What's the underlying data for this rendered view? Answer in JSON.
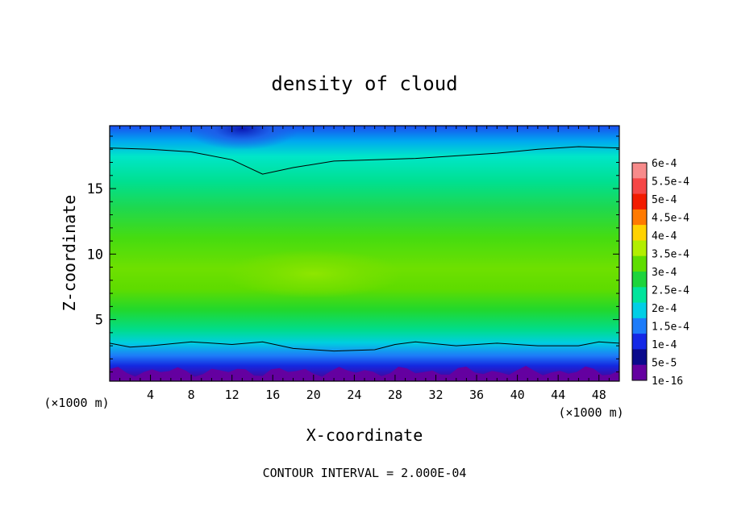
{
  "chart_data": {
    "type": "heatmap",
    "title": "density of cloud",
    "xlabel": "X-coordinate",
    "ylabel": "Z-coordinate",
    "x_unit_left": "(×1000 m)",
    "x_unit_right": "(×1000 m)",
    "footer": "CONTOUR INTERVAL = 2.000E-04",
    "xlim": [
      0,
      50
    ],
    "ylim": [
      0.3,
      19.8
    ],
    "x_ticks": [
      4,
      8,
      12,
      16,
      20,
      24,
      28,
      32,
      36,
      40,
      44,
      48
    ],
    "y_ticks": [
      5,
      10,
      15
    ],
    "colorbar": {
      "labels": [
        "6e-4",
        "5.5e-4",
        "5e-4",
        "4.5e-4",
        "4e-4",
        "3.5e-4",
        "3e-4",
        "2.5e-4",
        "2e-4",
        "1.5e-4",
        "1e-4",
        "5e-5",
        "1e-16"
      ],
      "colors": [
        "#f78b8b",
        "#f54747",
        "#f21c00",
        "#ff7a00",
        "#ffd200",
        "#b2ee00",
        "#5fdd00",
        "#1ed43c",
        "#00e49c",
        "#00cfe6",
        "#1c7cfa",
        "#1428e6",
        "#0a0a8c",
        "#6400a0"
      ]
    },
    "contour_lines": [
      {
        "level": "2e-4",
        "x": [
          0,
          4,
          8,
          12,
          15,
          18,
          22,
          26,
          30,
          34,
          38,
          42,
          46,
          50
        ],
        "y": [
          18.1,
          18.0,
          17.8,
          17.2,
          16.1,
          16.6,
          17.1,
          17.2,
          17.3,
          17.5,
          17.7,
          18.0,
          18.2,
          18.1
        ]
      },
      {
        "level": "1.5e-4",
        "x": [
          0,
          2,
          4,
          8,
          12,
          15,
          18,
          22,
          26,
          28,
          30,
          34,
          38,
          42,
          46,
          48,
          50
        ],
        "y": [
          3.2,
          2.9,
          3.0,
          3.3,
          3.1,
          3.3,
          2.8,
          2.6,
          2.7,
          3.1,
          3.3,
          3.0,
          3.2,
          3.0,
          3.0,
          3.3,
          3.2
        ]
      }
    ]
  }
}
